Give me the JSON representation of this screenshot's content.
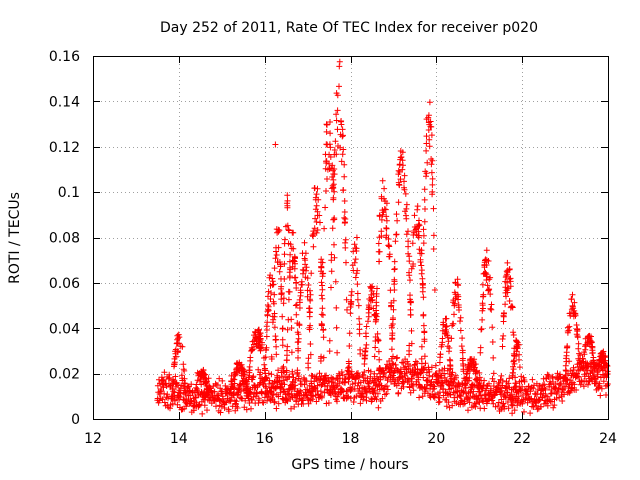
{
  "chart_data": {
    "type": "scatter",
    "title": "Day 252 of 2011, Rate Of TEC Index for receiver p020",
    "xlabel": "GPS time / hours",
    "ylabel": "ROTI / TECUs",
    "xlim": [
      12,
      24
    ],
    "ylim": [
      0,
      0.16
    ],
    "xticks": [
      "12",
      "14",
      "16",
      "18",
      "20",
      "22",
      "24"
    ],
    "yticks": [
      "0",
      "0.02",
      "0.04",
      "0.06",
      "0.08",
      "0.1",
      "0.12",
      "0.14",
      "0.16"
    ],
    "grid": true,
    "marker": "+",
    "color": "#ff0000",
    "series": [
      {
        "name": "ROTI",
        "base_envelope": [
          {
            "x": 13.5,
            "y": 0.012
          },
          {
            "x": 14.0,
            "y": 0.013
          },
          {
            "x": 14.5,
            "y": 0.01
          },
          {
            "x": 15.0,
            "y": 0.01
          },
          {
            "x": 15.5,
            "y": 0.012
          },
          {
            "x": 16.0,
            "y": 0.014
          },
          {
            "x": 16.5,
            "y": 0.013
          },
          {
            "x": 17.0,
            "y": 0.013
          },
          {
            "x": 17.5,
            "y": 0.014
          },
          {
            "x": 18.0,
            "y": 0.016
          },
          {
            "x": 18.5,
            "y": 0.014
          },
          {
            "x": 19.0,
            "y": 0.02
          },
          {
            "x": 19.5,
            "y": 0.018
          },
          {
            "x": 20.0,
            "y": 0.016
          },
          {
            "x": 20.5,
            "y": 0.012
          },
          {
            "x": 21.0,
            "y": 0.012
          },
          {
            "x": 21.5,
            "y": 0.012
          },
          {
            "x": 22.0,
            "y": 0.01
          },
          {
            "x": 22.5,
            "y": 0.011
          },
          {
            "x": 23.0,
            "y": 0.016
          },
          {
            "x": 23.5,
            "y": 0.022
          },
          {
            "x": 24.0,
            "y": 0.017
          }
        ],
        "arcs": [
          {
            "t0": 13.85,
            "t1": 14.15,
            "peak": 0.038
          },
          {
            "t0": 14.35,
            "t1": 14.7,
            "peak": 0.022
          },
          {
            "t0": 15.2,
            "t1": 15.6,
            "peak": 0.025
          },
          {
            "t0": 15.6,
            "t1": 16.05,
            "peak": 0.04
          },
          {
            "t0": 16.0,
            "t1": 16.3,
            "peak": 0.066
          },
          {
            "t0": 16.15,
            "t1": 16.45,
            "peak": 0.088
          },
          {
            "t0": 16.4,
            "t1": 16.65,
            "peak": 0.1
          },
          {
            "t0": 16.5,
            "t1": 16.8,
            "peak": 0.083
          },
          {
            "t0": 16.75,
            "t1": 17.1,
            "peak": 0.079
          },
          {
            "t0": 17.0,
            "t1": 17.4,
            "peak": 0.105
          },
          {
            "t0": 17.3,
            "t1": 17.7,
            "peak": 0.14
          },
          {
            "t0": 17.5,
            "t1": 17.95,
            "peak": 0.158
          },
          {
            "t0": 17.95,
            "t1": 18.25,
            "peak": 0.08
          },
          {
            "t0": 18.3,
            "t1": 18.7,
            "peak": 0.06
          },
          {
            "t0": 18.55,
            "t1": 19.0,
            "peak": 0.105
          },
          {
            "t0": 18.95,
            "t1": 19.45,
            "peak": 0.12
          },
          {
            "t0": 19.35,
            "t1": 19.75,
            "peak": 0.098
          },
          {
            "t0": 19.65,
            "t1": 20.0,
            "peak": 0.148
          },
          {
            "t0": 20.05,
            "t1": 20.35,
            "peak": 0.045
          },
          {
            "t0": 20.3,
            "t1": 20.65,
            "peak": 0.063
          },
          {
            "t0": 20.65,
            "t1": 21.0,
            "peak": 0.027
          },
          {
            "t0": 21.0,
            "t1": 21.35,
            "peak": 0.075
          },
          {
            "t0": 21.5,
            "t1": 21.85,
            "peak": 0.069
          },
          {
            "t0": 21.75,
            "t1": 22.0,
            "peak": 0.035
          },
          {
            "t0": 23.0,
            "t1": 23.35,
            "peak": 0.055
          },
          {
            "t0": 23.4,
            "t1": 23.7,
            "peak": 0.038
          },
          {
            "t0": 23.75,
            "t1": 24.0,
            "peak": 0.03
          }
        ],
        "isolated_points": [
          {
            "x": 16.25,
            "y": 0.121
          },
          {
            "x": 17.7,
            "y": 0.136
          },
          {
            "x": 18.15,
            "y": 0.08
          },
          {
            "x": 18.75,
            "y": 0.105
          },
          {
            "x": 18.65,
            "y": 0.005
          }
        ]
      }
    ]
  }
}
